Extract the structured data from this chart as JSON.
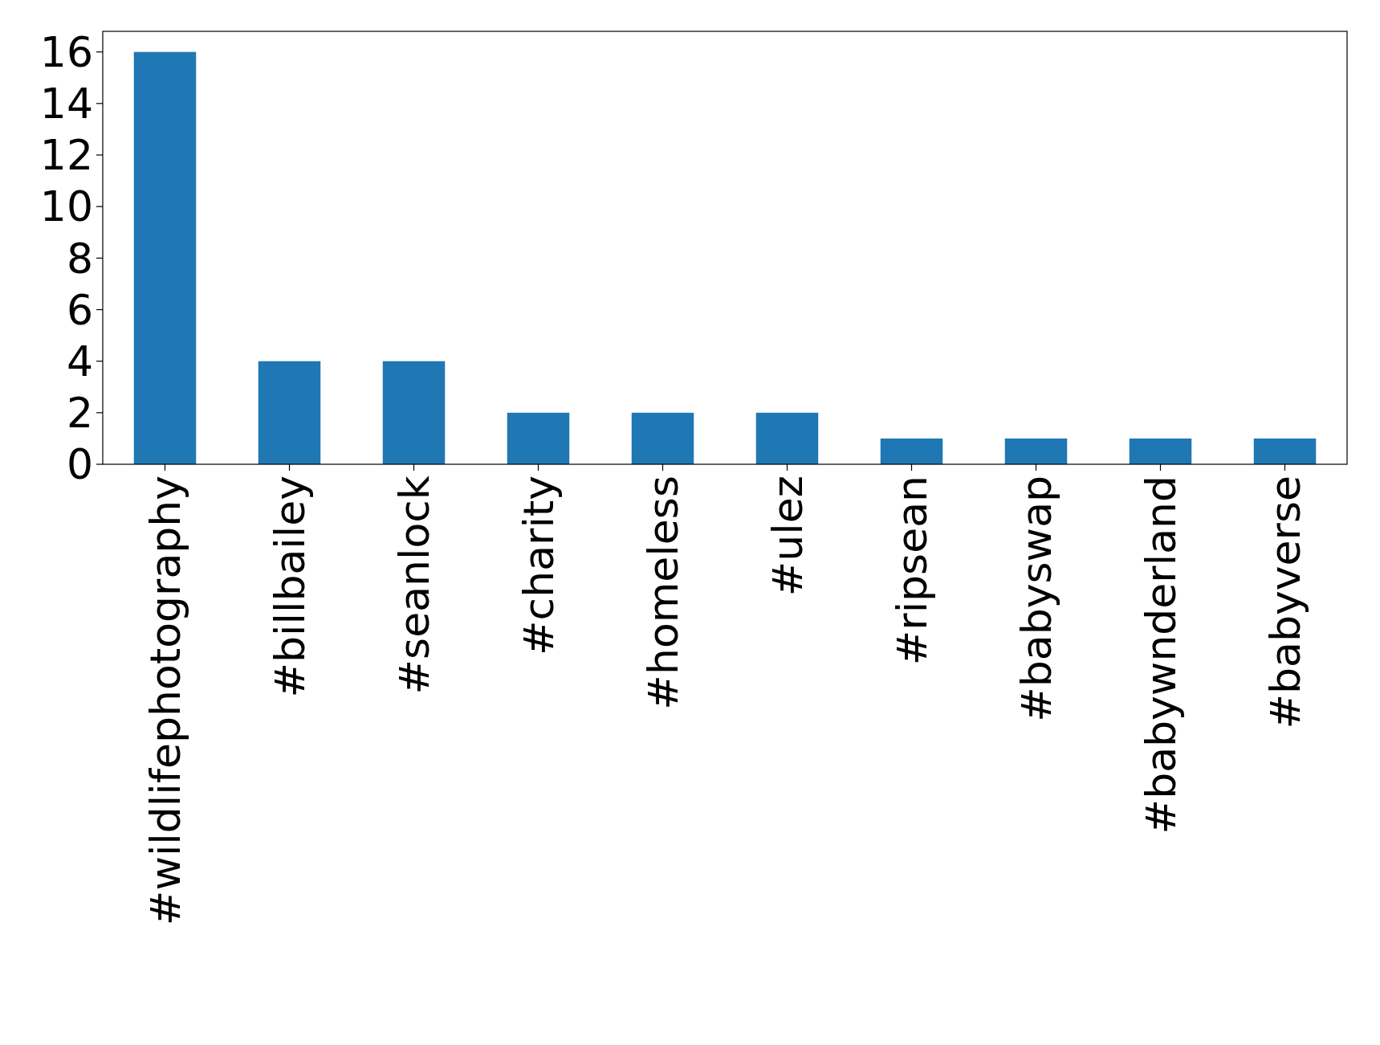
{
  "chart_data": {
    "type": "bar",
    "categories": [
      "#wildlifephotography",
      "#billbailey",
      "#seanlock",
      "#charity",
      "#homeless",
      "#ulez",
      "#ripsean",
      "#babyswap",
      "#babywnderland",
      "#babyverse"
    ],
    "values": [
      16,
      4,
      4,
      2,
      2,
      2,
      1,
      1,
      1,
      1
    ],
    "color": "#1f77b4",
    "ylim": [
      0,
      16.8
    ],
    "yticks": [
      0,
      2,
      4,
      6,
      8,
      10,
      12,
      14,
      16
    ],
    "grid": false
  }
}
